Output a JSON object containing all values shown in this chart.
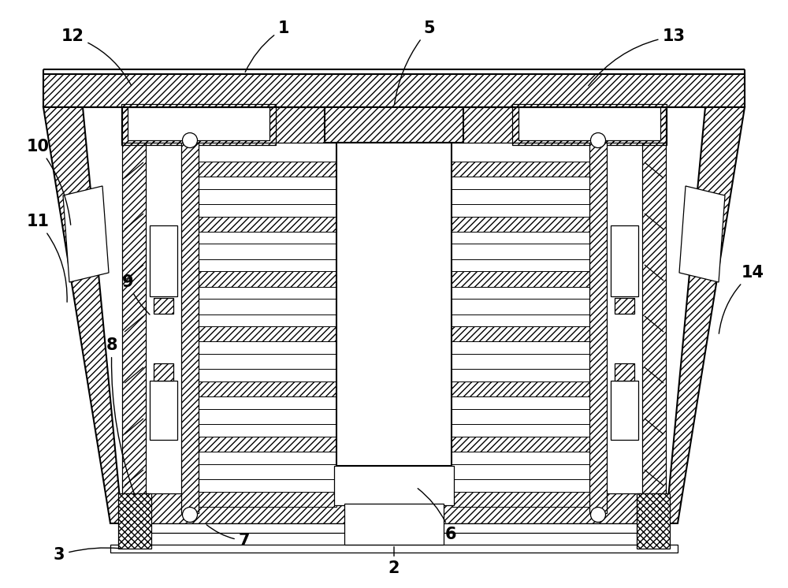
{
  "bg_color": "#ffffff",
  "line_color": "#000000",
  "fig_width": 10.0,
  "fig_height": 7.46,
  "lw_main": 1.5,
  "lw_thin": 0.9,
  "hatch_dense": "////",
  "hatch_cross": "xxxx",
  "hatch_back": "\\\\\\\\"
}
